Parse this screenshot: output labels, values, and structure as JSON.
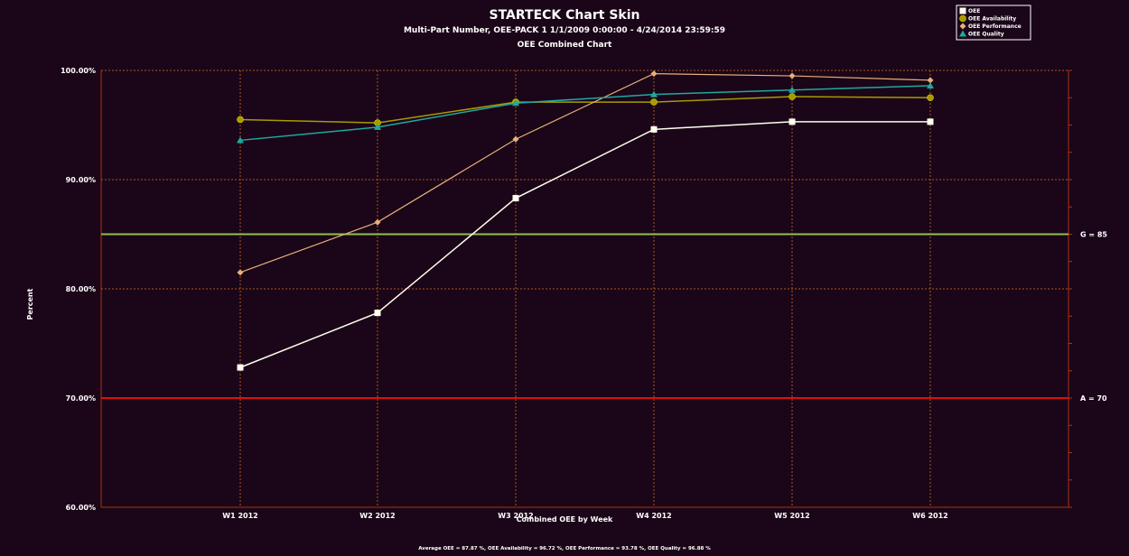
{
  "title": "STARTECK Chart Skin",
  "subtitle": "Multi-Part Number, OEE-PACK 1   1/1/2009 0:00:00 - 4/24/2014 23:59:59",
  "chart_name": "OEE Combined Chart",
  "footer": "Average OEE = 87.87 %, OEE Availability = 96.72 %, OEE Performance = 93.78 %, OEE Quality = 96.88 %",
  "colors": {
    "background": "#1a0618",
    "grid": "#b3541e",
    "axis": "#b03010",
    "oee": "#ffffee",
    "availability": "#a89a00",
    "performance": "#e8b078",
    "quality": "#20a8a0",
    "goal_line": "#90c050",
    "alert_line": "#dd1010"
  },
  "chart_data": {
    "type": "line",
    "title": "STARTECK Chart Skin",
    "subtitle": "Multi-Part Number, OEE-PACK 1   1/1/2009 0:00:00 - 4/24/2014 23:59:59",
    "xlabel": "Combined OEE by Week",
    "ylabel": "Percent",
    "categories": [
      "W1 2012",
      "W2 2012",
      "W3 2012",
      "W4 2012",
      "W5 2012",
      "W6 2012"
    ],
    "ylim": [
      60,
      100
    ],
    "yticks": [
      {
        "value": 60,
        "label": "60.00%"
      },
      {
        "value": 70,
        "label": "70.00%"
      },
      {
        "value": 80,
        "label": "80.00%"
      },
      {
        "value": 90,
        "label": "90.00%"
      },
      {
        "value": 100,
        "label": "100.00%"
      }
    ],
    "grid": true,
    "legend_position": "top-right",
    "series": [
      {
        "name": "OEE",
        "key": "oee",
        "marker": "square",
        "values": [
          72.8,
          77.8,
          88.3,
          94.6,
          95.3,
          95.3
        ]
      },
      {
        "name": "OEE Availability",
        "key": "availability",
        "marker": "circle",
        "values": [
          95.5,
          95.2,
          97.1,
          97.1,
          97.6,
          97.5
        ]
      },
      {
        "name": "OEE Performance",
        "key": "performance",
        "marker": "diamond",
        "values": [
          81.5,
          86.1,
          93.7,
          99.7,
          99.5,
          99.1
        ]
      },
      {
        "name": "OEE Quality",
        "key": "quality",
        "marker": "triangle",
        "values": [
          93.6,
          94.8,
          97.0,
          97.8,
          98.2,
          98.6
        ]
      }
    ],
    "reference_lines": [
      {
        "label": "G = 85",
        "value": 85,
        "key": "goal_line"
      },
      {
        "label": "A = 70",
        "value": 70,
        "key": "alert_line"
      }
    ]
  }
}
